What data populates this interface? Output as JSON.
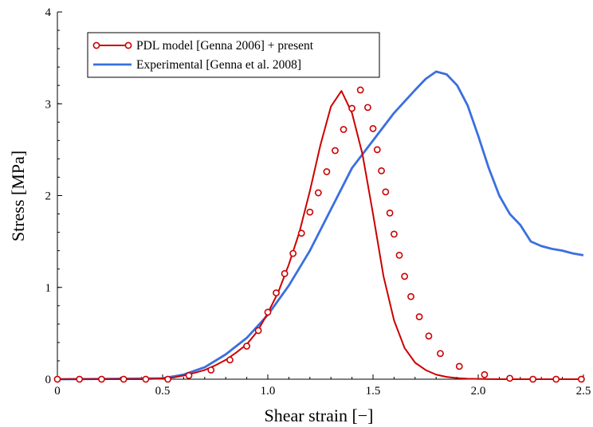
{
  "chart_data": {
    "type": "line",
    "title": "",
    "xlabel": "Shear strain [−]",
    "ylabel": "Stress [MPa]",
    "xlim": [
      0,
      2.5
    ],
    "ylim": [
      0,
      4
    ],
    "x_ticks": [
      "0",
      "0.5",
      "1.0",
      "1.5",
      "2.0",
      "2.5"
    ],
    "y_ticks": [
      "0",
      "1",
      "2",
      "3",
      "4"
    ],
    "grid": false,
    "legend_position": "top-left",
    "series": [
      {
        "name": "PDL model [Genna 2006] + present",
        "color": "#cc0000",
        "marker": "circle-open",
        "x": [
          0,
          0.05,
          0.1,
          0.15,
          0.2,
          0.25,
          0.3,
          0.35,
          0.4,
          0.45,
          0.5,
          0.55,
          0.6,
          0.65,
          0.7,
          0.75,
          0.8,
          0.85,
          0.9,
          0.95,
          1.0,
          1.05,
          1.1,
          1.15,
          1.2,
          1.25,
          1.3,
          1.35,
          1.4,
          1.45,
          1.5,
          1.55,
          1.6,
          1.65,
          1.7,
          1.75,
          1.8,
          1.85,
          1.9,
          1.95,
          2.0,
          2.05,
          2.1,
          2.15,
          2.2,
          2.25,
          2.3,
          2.35,
          2.4,
          2.45,
          2.5
        ],
        "y": [
          0,
          0,
          0,
          0,
          0,
          0,
          0,
          0,
          0,
          0.003,
          0.008,
          0.018,
          0.04,
          0.068,
          0.1,
          0.15,
          0.21,
          0.29,
          0.38,
          0.52,
          0.72,
          0.95,
          1.25,
          1.6,
          2.05,
          2.55,
          2.97,
          3.14,
          2.9,
          2.45,
          1.8,
          1.12,
          0.64,
          0.34,
          0.18,
          0.1,
          0.05,
          0.025,
          0.012,
          0.005,
          0.003,
          0.001,
          0,
          0,
          0,
          0,
          0,
          0,
          0,
          0,
          0
        ],
        "marker_x": [
          0,
          0.105,
          0.21,
          0.315,
          0.42,
          0.525,
          0.625,
          0.73,
          0.82,
          0.9,
          0.955,
          1.0,
          1.04,
          1.08,
          1.12,
          1.16,
          1.2,
          1.24,
          1.28,
          1.32,
          1.36,
          1.4,
          1.44,
          1.475,
          1.5,
          1.52,
          1.54,
          1.56,
          1.58,
          1.6,
          1.625,
          1.65,
          1.68,
          1.72,
          1.765,
          1.82,
          1.91,
          2.03,
          2.15,
          2.26,
          2.37,
          2.49
        ],
        "marker_y": [
          0,
          0,
          0,
          0,
          0,
          0,
          0.04,
          0.1,
          0.21,
          0.36,
          0.53,
          0.73,
          0.94,
          1.15,
          1.37,
          1.59,
          1.82,
          2.03,
          2.26,
          2.49,
          2.72,
          2.95,
          3.15,
          2.96,
          2.73,
          2.5,
          2.27,
          2.04,
          1.81,
          1.58,
          1.35,
          1.12,
          0.9,
          0.68,
          0.47,
          0.28,
          0.14,
          0.05,
          0.01,
          0,
          0,
          0
        ]
      },
      {
        "name": "Experimental [Genna et al. 2008]",
        "color": "#3a6fe0",
        "marker": "none",
        "x": [
          0,
          0.3,
          0.5,
          0.6,
          0.7,
          0.8,
          0.9,
          1.0,
          1.1,
          1.2,
          1.3,
          1.4,
          1.5,
          1.6,
          1.7,
          1.75,
          1.8,
          1.85,
          1.9,
          1.95,
          2.0,
          2.05,
          2.1,
          2.15,
          2.2,
          2.25,
          2.3,
          2.35,
          2.4,
          2.45,
          2.5
        ],
        "y": [
          0,
          0.005,
          0.01,
          0.05,
          0.13,
          0.27,
          0.45,
          0.7,
          1.02,
          1.4,
          1.85,
          2.3,
          2.6,
          2.9,
          3.15,
          3.27,
          3.35,
          3.32,
          3.2,
          2.98,
          2.65,
          2.3,
          2.0,
          1.8,
          1.68,
          1.5,
          1.45,
          1.42,
          1.4,
          1.37,
          1.35
        ]
      }
    ]
  }
}
